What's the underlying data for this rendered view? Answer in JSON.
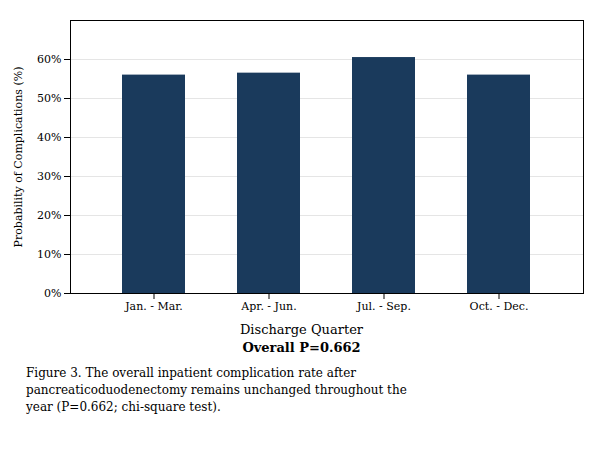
{
  "chart_data": {
    "type": "bar",
    "categories": [
      "Jan. - Mar.",
      "Apr. - Jun.",
      "Jul. - Sep.",
      "Oct. - Dec."
    ],
    "values": [
      56.0,
      56.5,
      60.5,
      56.0
    ],
    "color": "#1a3a5c",
    "ylabel": "Probability of Complications (%)",
    "xlabel": "Discharge Quarter",
    "annotations": [
      "Overall P=0.662"
    ],
    "caption": [
      "Figure 3. The overall inpatient complication rate after",
      "pancreaticoduodenectomy remains unchanged throughout the",
      "year (P=0.662; chi-square test)."
    ],
    "ylim": [
      0,
      70
    ],
    "yticks": [
      {
        "value": 0,
        "label": "0%"
      },
      {
        "value": 10,
        "label": "10%"
      },
      {
        "value": 20,
        "label": "20%"
      },
      {
        "value": 30,
        "label": "30%"
      },
      {
        "value": 40,
        "label": "40%"
      },
      {
        "value": 50,
        "label": "50%"
      },
      {
        "value": 60,
        "label": "60%"
      }
    ],
    "grid": true
  }
}
